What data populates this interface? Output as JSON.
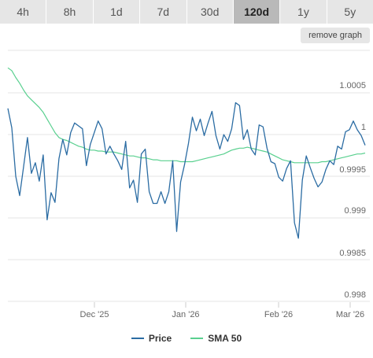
{
  "tabs": [
    {
      "label": "4h",
      "active": false
    },
    {
      "label": "8h",
      "active": false
    },
    {
      "label": "1d",
      "active": false
    },
    {
      "label": "7d",
      "active": false
    },
    {
      "label": "30d",
      "active": false
    },
    {
      "label": "120d",
      "active": true
    },
    {
      "label": "1y",
      "active": false
    },
    {
      "label": "5y",
      "active": false
    }
  ],
  "remove_graph_label": "remove graph",
  "colors": {
    "price": "#2b6ca3",
    "sma": "#59d08f",
    "grid": "#e6e6e6",
    "axis_text": "#666666"
  },
  "chart_data": {
    "type": "line",
    "x_ticks": [
      "Dec '25",
      "Jan '26",
      "Feb '26",
      "Mar '26"
    ],
    "y_ticks": [
      "1.0005",
      "1",
      "0.9995",
      "0.999",
      "0.9985",
      "0.998"
    ],
    "ylim": [
      0.998,
      1.0006
    ],
    "legend_placement": "bottom-center",
    "series": [
      {
        "name": "Price",
        "values": [
          1.0,
          0.9998,
          0.9993,
          0.9991,
          0.9994,
          0.9997,
          0.99933,
          0.99944,
          0.99925,
          0.99952,
          0.99885,
          0.99913,
          0.99903,
          0.99948,
          0.99968,
          0.99952,
          0.99975,
          0.99985,
          0.99982,
          0.99979,
          0.99941,
          0.99963,
          0.99975,
          0.99987,
          0.99979,
          0.99953,
          0.99961,
          0.99953,
          0.99946,
          0.99937,
          0.99966,
          0.99918,
          0.99926,
          0.99903,
          0.99953,
          0.99958,
          0.99914,
          0.99902,
          0.99902,
          0.99914,
          0.99902,
          0.99914,
          0.99946,
          0.99873,
          0.99924,
          0.99942,
          0.99964,
          0.99991,
          0.99977,
          0.99989,
          0.99972,
          0.99985,
          0.99997,
          0.99972,
          0.99958,
          0.99973,
          0.99966,
          0.99979,
          1.00006,
          1.00003,
          0.99968,
          0.99978,
          0.99958,
          0.99952,
          0.99983,
          0.99981,
          0.99959,
          0.99945,
          0.99943,
          0.99929,
          0.99925,
          0.99938,
          0.99946,
          0.99882,
          0.99866,
          0.99926,
          0.99951,
          0.99939,
          0.99928,
          0.99919,
          0.99924,
          0.99937,
          0.99946,
          0.99942,
          0.99961,
          0.99958,
          0.99976,
          0.99978,
          0.99987,
          0.99978,
          0.99972,
          0.99962
        ]
      },
      {
        "name": "SMA 50",
        "values": [
          1.00042,
          1.00039,
          1.00032,
          1.00026,
          1.00019,
          1.00013,
          1.00009,
          1.00005,
          1.00001,
          0.99996,
          0.99989,
          0.99982,
          0.99975,
          0.9997,
          0.99968,
          0.99967,
          0.99965,
          0.99963,
          0.99961,
          0.9996,
          0.99958,
          0.99957,
          0.99957,
          0.99956,
          0.99956,
          0.99955,
          0.99955,
          0.99955,
          0.99954,
          0.99953,
          0.99952,
          0.99951,
          0.99951,
          0.9995,
          0.99949,
          0.99949,
          0.99948,
          0.99947,
          0.99947,
          0.99946,
          0.99946,
          0.99946,
          0.99946,
          0.99946,
          0.99945,
          0.99945,
          0.99945,
          0.99945,
          0.99946,
          0.99947,
          0.99948,
          0.99949,
          0.9995,
          0.99951,
          0.99952,
          0.99953,
          0.99955,
          0.99957,
          0.99958,
          0.99959,
          0.99959,
          0.9996,
          0.99959,
          0.99958,
          0.99957,
          0.99956,
          0.99955,
          0.99953,
          0.99951,
          0.99949,
          0.99947,
          0.99946,
          0.99945,
          0.99944,
          0.99944,
          0.99944,
          0.99944,
          0.99944,
          0.99944,
          0.99944,
          0.99945,
          0.99945,
          0.99946,
          0.99947,
          0.99948,
          0.99949,
          0.9995,
          0.99951,
          0.99952,
          0.99953,
          0.99953,
          0.99954
        ]
      }
    ]
  }
}
